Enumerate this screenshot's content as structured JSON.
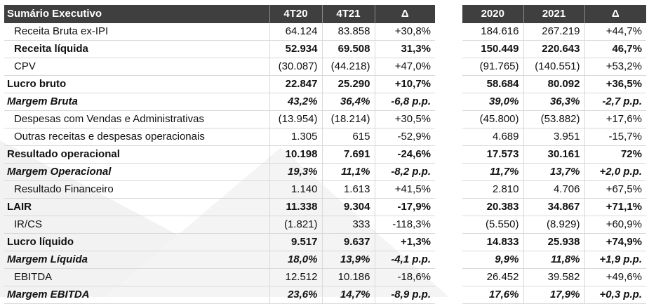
{
  "header": {
    "title": "Sumário Executivo",
    "cols_q": [
      "4T20",
      "4T21",
      "Δ"
    ],
    "cols_y": [
      "2020",
      "2021",
      "Δ"
    ]
  },
  "rows": [
    {
      "label": "Receita Bruta ex-IPI",
      "q": [
        "64.124",
        "83.858",
        "+30,8%"
      ],
      "y": [
        "184.616",
        "267.219",
        "+44,7%"
      ]
    },
    {
      "label": "Receita líquida",
      "q": [
        "52.934",
        "69.508",
        "31,3%"
      ],
      "y": [
        "150.449",
        "220.643",
        "46,7%"
      ]
    },
    {
      "label": "CPV",
      "q": [
        "(30.087)",
        "(44.218)",
        "+47,0%"
      ],
      "y": [
        "(91.765)",
        "(140.551)",
        "+53,2%"
      ]
    },
    {
      "label": "Lucro bruto",
      "q": [
        "22.847",
        "25.290",
        "+10,7%"
      ],
      "y": [
        "58.684",
        "80.092",
        "+36,5%"
      ]
    },
    {
      "label": "Margem Bruta",
      "q": [
        "43,2%",
        "36,4%",
        "-6,8 p.p."
      ],
      "y": [
        "39,0%",
        "36,3%",
        "-2,7 p.p."
      ]
    },
    {
      "label": "Despesas com Vendas e Administrativas",
      "q": [
        "(13.954)",
        "(18.214)",
        "+30,5%"
      ],
      "y": [
        "(45.800)",
        "(53.882)",
        "+17,6%"
      ]
    },
    {
      "label": "Outras receitas e despesas operacionais",
      "q": [
        "1.305",
        "615",
        "-52,9%"
      ],
      "y": [
        "4.689",
        "3.951",
        "-15,7%"
      ]
    },
    {
      "label": "Resultado operacional",
      "q": [
        "10.198",
        "7.691",
        "-24,6%"
      ],
      "y": [
        "17.573",
        "30.161",
        "72%"
      ]
    },
    {
      "label": "Margem Operacional",
      "q": [
        "19,3%",
        "11,1%",
        "-8,2 p.p."
      ],
      "y": [
        "11,7%",
        "13,7%",
        "+2,0 p.p."
      ]
    },
    {
      "label": "Resultado Financeiro",
      "q": [
        "1.140",
        "1.613",
        "+41,5%"
      ],
      "y": [
        "2.810",
        "4.706",
        "+67,5%"
      ]
    },
    {
      "label": "LAIR",
      "q": [
        "11.338",
        "9.304",
        "-17,9%"
      ],
      "y": [
        "20.383",
        "34.867",
        "+71,1%"
      ]
    },
    {
      "label": "IR/CS",
      "q": [
        "(1.821)",
        "333",
        "-118,3%"
      ],
      "y": [
        "(5.550)",
        "(8.929)",
        "+60,9%"
      ]
    },
    {
      "label": "Lucro líquido",
      "q": [
        "9.517",
        "9.637",
        "+1,3%"
      ],
      "y": [
        "14.833",
        "25.938",
        "+74,9%"
      ]
    },
    {
      "label": "Margem Líquida",
      "q": [
        "18,0%",
        "13,9%",
        "-4,1 p.p."
      ],
      "y": [
        "9,9%",
        "11,8%",
        "+1,9 p.p."
      ]
    },
    {
      "label": "EBITDA",
      "q": [
        "12.512",
        "10.186",
        "-18,6%"
      ],
      "y": [
        "26.452",
        "39.582",
        "+49,6%"
      ]
    },
    {
      "label": "Margem EBITDA",
      "q": [
        "23,6%",
        "14,7%",
        "-8,9 p.p."
      ],
      "y": [
        "17,6%",
        "17,9%",
        "+0,3 p.p."
      ]
    }
  ]
}
